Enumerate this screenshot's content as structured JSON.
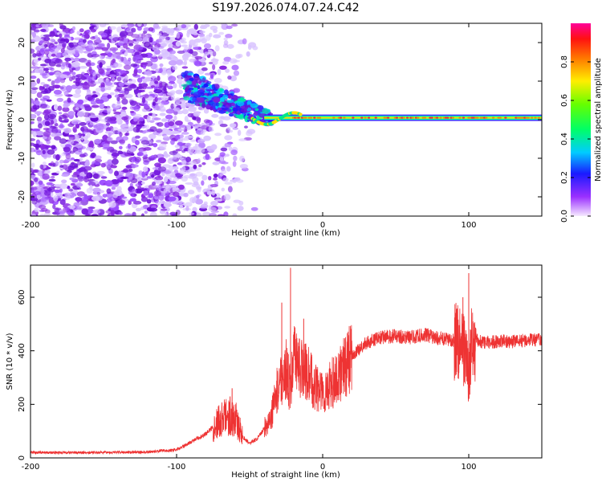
{
  "title": "S197.2026.074.07.24.C42",
  "chart_data": [
    {
      "type": "heatmap",
      "xlabel": "Height of straight line (km)",
      "ylabel": "Frequency (Hz)",
      "xlim": [
        -200,
        150
      ],
      "ylim": [
        -25,
        25
      ],
      "xticks": [
        -200,
        -100,
        0,
        100
      ],
      "yticks": [
        -20,
        -10,
        0,
        10,
        20
      ],
      "colorbar": {
        "label": "Normalized spectral amplitude",
        "range": [
          0,
          1
        ],
        "ticks": [
          0.0,
          0.2,
          0.4,
          0.6,
          0.8
        ],
        "tick_labels": [
          "0.0",
          "0.2",
          "0.4",
          "0.6",
          "0.8"
        ]
      },
      "features": {
        "noise_region_x": [
          -200,
          -45
        ],
        "signal_line": {
          "x_start": -40,
          "x_end": 150,
          "frequency": 0.5
        },
        "transition_blob": {
          "x": [
            -95,
            -35
          ],
          "frequency_range": [
            -5,
            12
          ]
        }
      }
    },
    {
      "type": "line",
      "xlabel": "Height of straight line (km)",
      "ylabel": "SNR (10 * v/v)",
      "xlim": [
        -200,
        150
      ],
      "ylim": [
        0,
        720
      ],
      "xticks": [
        -200,
        -100,
        0,
        100
      ],
      "yticks": [
        0,
        200,
        400,
        600
      ],
      "color": "#ee3333",
      "series": [
        {
          "name": "SNR",
          "x": [
            -200,
            -160,
            -120,
            -100,
            -90,
            -80,
            -70,
            -65,
            -60,
            -55,
            -50,
            -45,
            -40,
            -35,
            -30,
            -25,
            -22,
            -20,
            -15,
            -10,
            -5,
            0,
            10,
            20,
            30,
            40,
            50,
            60,
            70,
            80,
            90,
            95,
            98,
            100,
            102,
            105,
            110,
            120,
            130,
            140,
            150
          ],
          "values": [
            20,
            20,
            22,
            30,
            60,
            90,
            140,
            160,
            150,
            80,
            55,
            70,
            110,
            160,
            280,
            330,
            250,
            370,
            340,
            310,
            270,
            240,
            300,
            380,
            430,
            450,
            455,
            450,
            460,
            445,
            440,
            440,
            380,
            300,
            420,
            440,
            430,
            435,
            435,
            440,
            440
          ]
        }
      ],
      "spikes": [
        {
          "x": -22,
          "value": 710
        },
        {
          "x": -28,
          "value": 580
        },
        {
          "x": -13,
          "value": 520
        },
        {
          "x": -62,
          "value": 260
        },
        {
          "x": 96,
          "value": 600
        },
        {
          "x": 100,
          "value": 690
        },
        {
          "x": 100,
          "value": 240
        }
      ]
    }
  ]
}
